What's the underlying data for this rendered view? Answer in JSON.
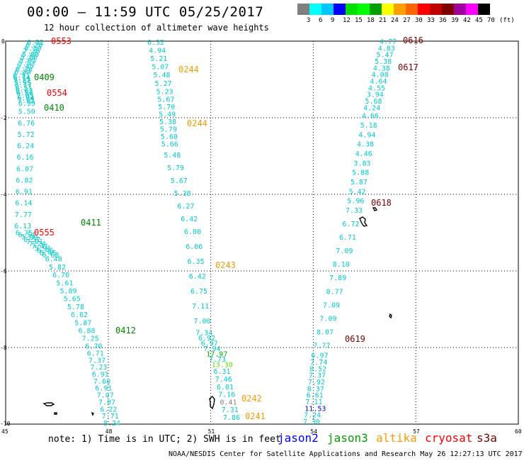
{
  "title": "00:00 – 11:59 UTC 05/25/2017",
  "subtitle": "12 hour collection of altimeter wave heights",
  "colorbar": {
    "labels": [
      "3",
      "6",
      "9",
      "12",
      "15",
      "18",
      "21",
      "24",
      "27",
      "30",
      "33",
      "36",
      "39",
      "42",
      "45",
      "70",
      "(ft)"
    ],
    "colors": [
      "#808080",
      "#00ffff",
      "#00c8ff",
      "#0000ff",
      "#00e000",
      "#00ff00",
      "#00a000",
      "#ffff00",
      "#ffa000",
      "#ff6600",
      "#ff0000",
      "#c00000",
      "#800000",
      "#a000a0",
      "#ff00ff",
      "#000000"
    ]
  },
  "map": {
    "x_ticks": [
      "45",
      "48",
      "51",
      "54",
      "57",
      "60"
    ],
    "y_ticks": [
      "0",
      "-2",
      "-4",
      "-6",
      "-8",
      "-10"
    ],
    "lon_range": [
      45,
      60
    ],
    "lat_range": [
      -10,
      0
    ]
  },
  "note": "note: 1) Time is in UTC; 2) SWH is in feet",
  "legend": [
    {
      "label": "jason2",
      "color": "#0000ff"
    },
    {
      "label": "jason3",
      "color": "#00a000"
    },
    {
      "label": "altika",
      "color": "#ff9900"
    },
    {
      "label": "cryosat",
      "color": "#ff0000"
    },
    {
      "label": "s3a",
      "color": "#800000"
    }
  ],
  "credit": "NOAA/NESDIS Center for Satellite Applications and Research    May 26 12:27:13 UTC 2017",
  "tracks": {
    "track1": [
      "6.52",
      "6.20",
      "6.50",
      "7.36",
      "5.86",
      "5.86",
      "5.95",
      "5.53",
      "5.45",
      "6.36",
      "6.84",
      "6.51",
      "6.14",
      "5.27",
      "5.95",
      "6.17",
      "6.51",
      "6.63",
      "6.86",
      "7.05",
      "6.84",
      "7.05",
      "6.99",
      "5.50",
      "6.76",
      "5.72",
      "6.24",
      "6.16",
      "6.07",
      "6.82",
      "6.91",
      "6.14",
      "7.77",
      "6.13",
      "6.75",
      "6.54",
      "7.09",
      "6.57",
      "7.01",
      "7.24",
      "7.41",
      "5.91",
      "6.45",
      "6.45",
      "6.68",
      "6.48",
      "5.82",
      "6.70",
      "5.61",
      "5.89",
      "5.65",
      "5.78",
      "6.62",
      "5.87",
      "6.88",
      "7.25",
      "6.70",
      "6.71",
      "7.37",
      "7.23",
      "6.91",
      "7.60",
      "6.91",
      "7.07",
      "7.07",
      "6.22",
      "7.71",
      "8.24"
    ],
    "track2": [
      "6.32",
      "4.94",
      "5.21",
      "5.07",
      "5.48",
      "5.27",
      "5.23",
      "5.67",
      "5.70",
      "5.49",
      "5.38",
      "5.79",
      "5.60",
      "5.66",
      "5.48",
      "5.79",
      "5.67",
      "5.38",
      "6.27",
      "6.42",
      "6.00",
      "6.06",
      "6.35",
      "6.42",
      "6.75",
      "7.11",
      "7.00",
      "7.34",
      "6.92",
      "6.97",
      "7.94",
      "17.97",
      "7.73",
      "13.30",
      "6.31",
      "7.46",
      "6.01",
      "7.16",
      "0.41",
      "7.31",
      "7.86"
    ],
    "track3": [
      "4.77",
      "4.83",
      "5.47",
      "5.38",
      "4.38",
      "4.08",
      "4.64",
      "4.55",
      "3.94",
      "5.68",
      "4.24",
      "4.66",
      "5.18",
      "4.94",
      "4.38",
      "4.46",
      "3.83",
      "5.88",
      "5.87",
      "5.42",
      "5.96",
      "7.33",
      "6.72",
      "6.71",
      "7.09",
      "8.10",
      "7.89",
      "8.77",
      "7.09",
      "7.09",
      "8.07",
      "7.77",
      "6.97",
      "7.74",
      "8.52",
      "7.37",
      "7.92",
      "8.37",
      "6.61",
      "7.11",
      "11.53",
      "7.24",
      "7.30"
    ]
  },
  "passes": [
    {
      "id": "0553",
      "sat": "cryosat"
    },
    {
      "id": "0409",
      "sat": "jason3"
    },
    {
      "id": "0554",
      "sat": "cryosat"
    },
    {
      "id": "0410",
      "sat": "jason3"
    },
    {
      "id": "0411",
      "sat": "jason3"
    },
    {
      "id": "0555",
      "sat": "cryosat"
    },
    {
      "id": "0412",
      "sat": "jason3"
    },
    {
      "id": "0244",
      "sat": "altika"
    },
    {
      "id": "0244",
      "sat": "altika"
    },
    {
      "id": "0243",
      "sat": "altika"
    },
    {
      "id": "0242",
      "sat": "altika"
    },
    {
      "id": "0241",
      "sat": "altika"
    },
    {
      "id": "0616",
      "sat": "s3a"
    },
    {
      "id": "0617",
      "sat": "s3a"
    },
    {
      "id": "0618",
      "sat": "s3a"
    },
    {
      "id": "0619",
      "sat": "s3a"
    }
  ]
}
